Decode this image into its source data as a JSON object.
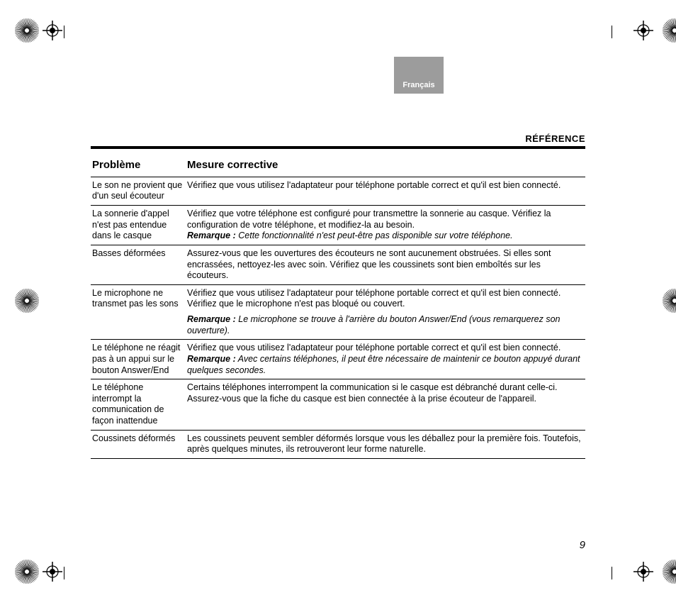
{
  "lang_tab": "Français",
  "section_title": "RÉFÉRENCE",
  "page_number": "9",
  "table": {
    "col1": "Problème",
    "col2": "Mesure corrective",
    "rows": [
      {
        "problem": "Le son ne provient que d'un seul écouteur",
        "measure": "Vérifiez que vous utilisez l'adaptateur pour téléphone portable correct et qu'il est bien connecté."
      },
      {
        "problem": "La sonnerie d'appel n'est pas entendue dans le casque",
        "measure": "Vérifiez que votre téléphone est configuré pour transmettre la sonnerie au casque. Vérifiez la configuration de votre téléphone, et modifiez-la au besoin.",
        "note_label": "Remarque :",
        "note": " Cette fonctionnalité n'est peut-être pas disponible sur votre téléphone."
      },
      {
        "problem": "Basses déformées",
        "measure": "Assurez-vous que les ouvertures des écouteurs ne sont aucunement obstruées. Si elles sont encrassées, nettoyez-les avec soin. Vérifiez que les coussinets sont bien emboîtés sur les écouteurs."
      },
      {
        "problem": "Le microphone ne transmet pas les sons",
        "measure": "Vérifiez que vous utilisez l'adaptateur pour téléphone portable correct et qu'il est bien connecté.",
        "measure2": "Vérifiez que le microphone n'est pas bloqué ou couvert.",
        "note_label": "Remarque :",
        "note": " Le microphone se trouve à l'arrière du bouton Answer/End (vous remarquerez son ouverture)."
      },
      {
        "problem": "Le téléphone ne réagit pas à un appui sur le bouton Answer/End",
        "measure": "Vérifiez que vous utilisez l'adaptateur pour téléphone portable correct et qu'il est bien connecté.",
        "note_label": "Remarque :",
        "note": " Avec certains téléphones, il peut être nécessaire de maintenir ce bouton appuyé durant quelques secondes."
      },
      {
        "problem": "Le téléphone interrompt la communication de façon inattendue",
        "measure": "Certains téléphones interrompent la communication si le casque est débranché durant celle-ci.",
        "measure2": "Assurez-vous que la fiche du casque est bien connectée à la prise écouteur de l'appareil."
      },
      {
        "problem": "Coussinets déformés",
        "measure": "Les coussinets peuvent sembler déformés lorsque vous les déballez pour la première fois. Toutefois, après quelques minutes, ils retrouveront leur forme naturelle."
      }
    ]
  },
  "colors": {
    "tab_bg": "#9c9c9c",
    "tab_fg": "#ffffff",
    "text": "#000000",
    "bg": "#ffffff"
  }
}
